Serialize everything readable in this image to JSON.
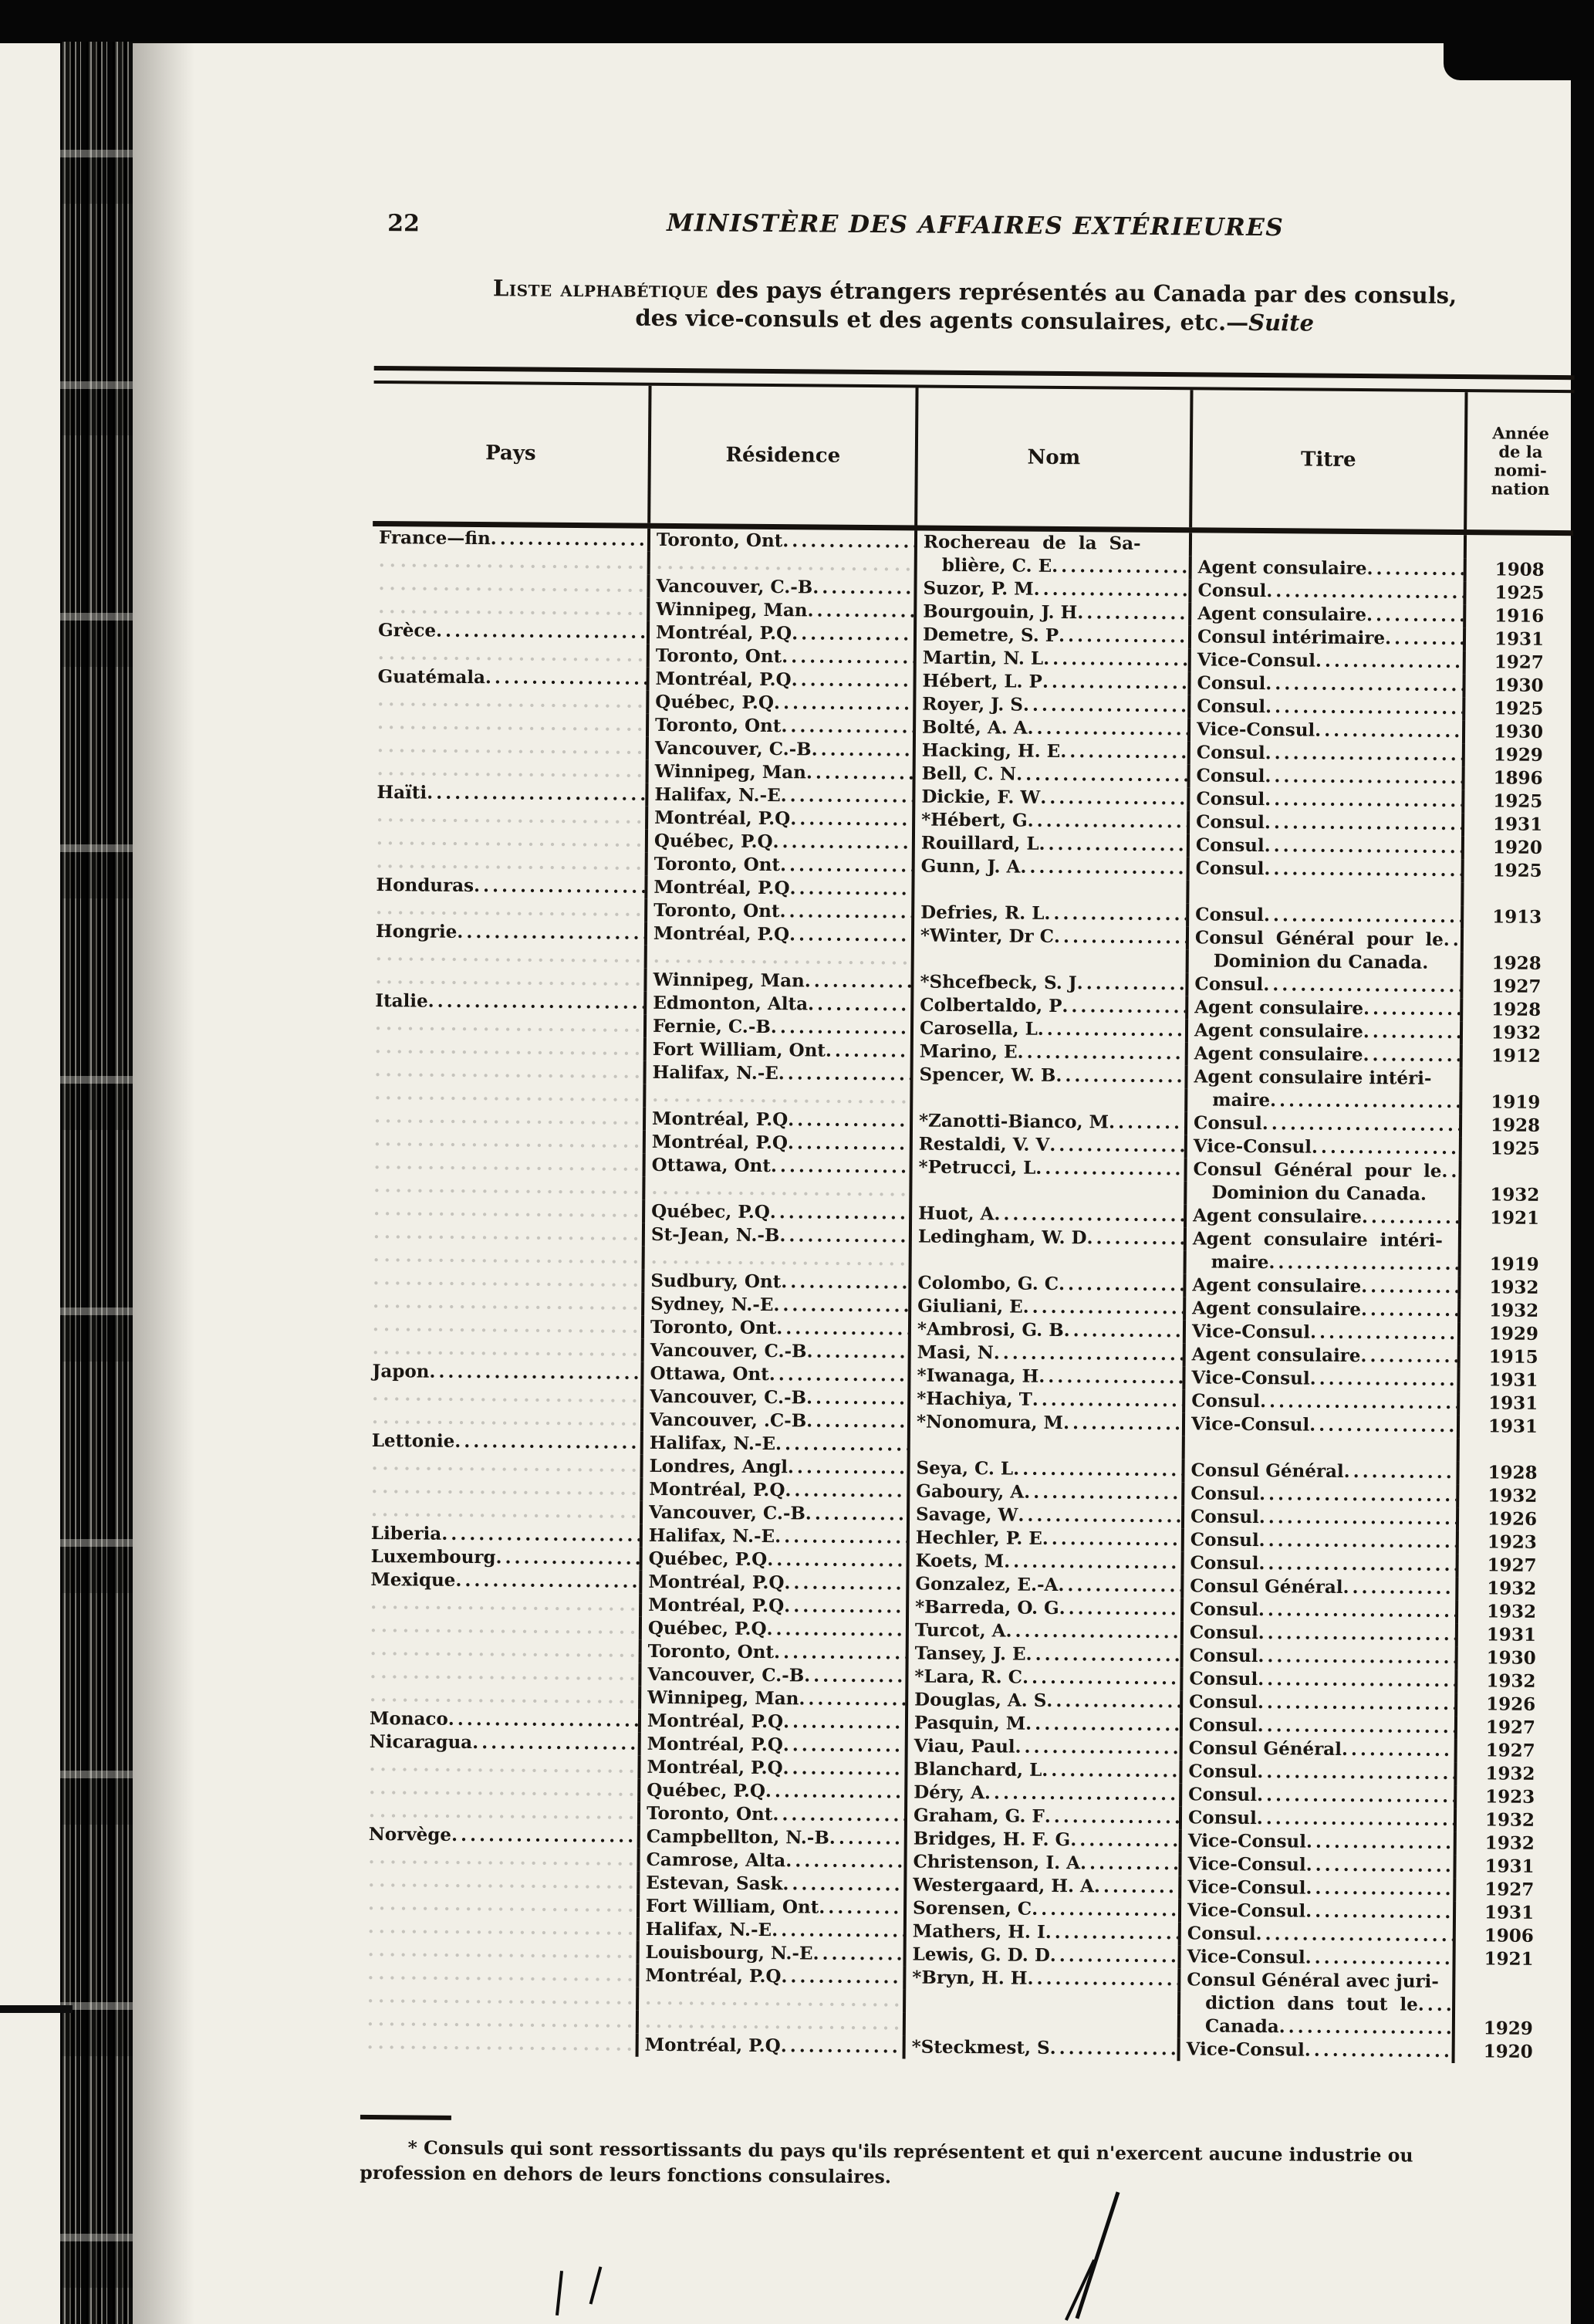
{
  "colors": {
    "ink": "#1a1612",
    "paper": "#f1efe7",
    "surround": "#060606"
  },
  "page": {
    "number": "22",
    "title": "MINISTÈRE DES AFFAIRES EXTÉRIEURES",
    "subtitle": {
      "lead": "Liste alphabétique",
      "rest": " des pays étrangers représentés au Canada par des consuls,",
      "line2": "des vice-consuls et des agents consulaires, etc.—",
      "suite": "Suite"
    }
  },
  "table": {
    "headers": {
      "pays": "Pays",
      "residence": "Résidence",
      "nom": "Nom",
      "titre": "Titre",
      "annee": "Année\nde la\nnomi-\nnation"
    },
    "rows": [
      {
        "p": "France—fin",
        "r": "Toronto, Ont",
        "n": "Rochereau  de  la  Sa-",
        "t": "",
        "a": ""
      },
      {
        "p": "",
        "r": "",
        "n": "   blière, C. E",
        "t": "Agent consulaire",
        "a": "1908"
      },
      {
        "p": "",
        "r": "Vancouver, C.-B",
        "n": "Suzor, P. M",
        "t": "Consul",
        "a": "1925"
      },
      {
        "p": "",
        "r": "Winnipeg, Man",
        "n": "Bourgouin, J. H",
        "t": "Agent consulaire",
        "a": "1916"
      },
      {
        "p": "Grèce",
        "r": "Montréal, P.Q",
        "n": "Demetre, S. P",
        "t": "Consul intérimaire",
        "a": "1931"
      },
      {
        "p": "",
        "r": "Toronto, Ont",
        "n": "Martin, N. L",
        "t": "Vice-Consul",
        "a": "1927"
      },
      {
        "p": "Guatémala",
        "r": "Montréal, P.Q",
        "n": "Hébert, L. P",
        "t": "Consul",
        "a": "1930"
      },
      {
        "p": "",
        "r": "Québec, P.Q",
        "n": "Royer, J. S",
        "t": "Consul",
        "a": "1925"
      },
      {
        "p": "",
        "r": "Toronto, Ont",
        "n": "Bolté, A. A",
        "t": "Vice-Consul",
        "a": "1930"
      },
      {
        "p": "",
        "r": "Vancouver, C.-B",
        "n": "Hacking, H. E",
        "t": "Consul",
        "a": "1929"
      },
      {
        "p": "",
        "r": "Winnipeg, Man",
        "n": "Bell, C. N",
        "t": "Consul",
        "a": "1896"
      },
      {
        "p": "Haïti",
        "r": "Halifax, N.-E",
        "n": "Dickie, F. W",
        "t": "Consul",
        "a": "1925"
      },
      {
        "p": "",
        "r": "Montréal, P.Q",
        "n": "*Hébert, G",
        "t": "Consul",
        "a": "1931"
      },
      {
        "p": "",
        "r": "Québec, P.Q",
        "n": "Rouillard, L",
        "t": "Consul",
        "a": "1920"
      },
      {
        "p": "",
        "r": "Toronto, Ont",
        "n": "Gunn, J. A",
        "t": "Consul",
        "a": "1925"
      },
      {
        "p": "Honduras",
        "r": "Montréal, P.Q",
        "n": "",
        "t": "",
        "a": ""
      },
      {
        "p": "",
        "r": "Toronto, Ont",
        "n": "Defries, R. L",
        "t": "Consul",
        "a": "1913"
      },
      {
        "p": "Hongrie",
        "r": "Montréal, P.Q",
        "n": "*Winter, Dr C",
        "t": "Consul  Général  pour  le",
        "a": ""
      },
      {
        "p": "",
        "r": "",
        "n": "",
        "t": "   Dominion du Canada.",
        "a": "1928"
      },
      {
        "p": "",
        "r": "Winnipeg, Man",
        "n": "*Shcefbeck, S. J",
        "t": "Consul",
        "a": "1927"
      },
      {
        "p": "Italie",
        "r": "Edmonton, Alta",
        "n": "Colbertaldo, P",
        "t": "Agent consulaire",
        "a": "1928"
      },
      {
        "p": "",
        "r": "Fernie, C.-B",
        "n": "Carosella, L",
        "t": "Agent consulaire",
        "a": "1932"
      },
      {
        "p": "",
        "r": "Fort William, Ont",
        "n": "Marino, E",
        "t": "Agent consulaire",
        "a": "1912"
      },
      {
        "p": "",
        "r": "Halifax, N.-E",
        "n": "Spencer, W. B",
        "t": "Agent consulaire intéri-",
        "a": ""
      },
      {
        "p": "",
        "r": "",
        "n": "",
        "t": "   maire",
        "a": "1919"
      },
      {
        "p": "",
        "r": "Montréal, P.Q",
        "n": "*Zanotti-Bianco, M",
        "t": "Consul",
        "a": "1928"
      },
      {
        "p": "",
        "r": "Montréal, P.Q",
        "n": "Restaldi, V. V",
        "t": "Vice-Consul",
        "a": "1925"
      },
      {
        "p": "",
        "r": "Ottawa, Ont",
        "n": "*Petrucci, L",
        "t": "Consul  Général  pour  le",
        "a": ""
      },
      {
        "p": "",
        "r": "",
        "n": "",
        "t": "   Dominion du Canada.",
        "a": "1932"
      },
      {
        "p": "",
        "r": "Québec, P.Q",
        "n": "Huot, A",
        "t": "Agent consulaire",
        "a": "1921"
      },
      {
        "p": "",
        "r": "St-Jean, N.-B",
        "n": "Ledingham, W. D",
        "t": "Agent  consulaire  intéri-",
        "a": ""
      },
      {
        "p": "",
        "r": "",
        "n": "",
        "t": "   maire",
        "a": "1919"
      },
      {
        "p": "",
        "r": "Sudbury, Ont",
        "n": "Colombo, G. C",
        "t": "Agent consulaire",
        "a": "1932"
      },
      {
        "p": "",
        "r": "Sydney, N.-E",
        "n": "Giuliani, E",
        "t": "Agent consulaire",
        "a": "1932"
      },
      {
        "p": "",
        "r": "Toronto, Ont",
        "n": "*Ambrosi, G. B",
        "t": "Vice-Consul",
        "a": "1929"
      },
      {
        "p": "",
        "r": "Vancouver, C.-B",
        "n": "Masi, N",
        "t": "Agent consulaire",
        "a": "1915"
      },
      {
        "p": "Japon",
        "r": "Ottawa, Ont",
        "n": "*Iwanaga, H",
        "t": "Vice-Consul",
        "a": "1931"
      },
      {
        "p": "",
        "r": "Vancouver, C.-B",
        "n": "*Hachiya, T",
        "t": "Consul",
        "a": "1931"
      },
      {
        "p": "",
        "r": "Vancouver, .C-B",
        "n": "*Nonomura, M",
        "t": "Vice-Consul",
        "a": "1931"
      },
      {
        "p": "Lettonie",
        "r": "Halifax, N.-E",
        "n": "",
        "t": "",
        "a": ""
      },
      {
        "p": "",
        "r": "Londres, Angl",
        "n": "Seya, C. L",
        "t": "Consul Général",
        "a": "1928"
      },
      {
        "p": "",
        "r": "Montréal, P.Q",
        "n": "Gaboury, A",
        "t": "Consul",
        "a": "1932"
      },
      {
        "p": "",
        "r": "Vancouver, C.-B",
        "n": "Savage, W",
        "t": "Consul",
        "a": "1926"
      },
      {
        "p": "Liberia",
        "r": "Halifax, N.-E",
        "n": "Hechler, P. E",
        "t": "Consul",
        "a": "1923"
      },
      {
        "p": "Luxembourg",
        "r": "Québec, P.Q",
        "n": "Koets, M",
        "t": "Consul",
        "a": "1927"
      },
      {
        "p": "Mexique",
        "r": "Montréal, P.Q",
        "n": "Gonzalez, E.-A",
        "t": "Consul Général",
        "a": "1932"
      },
      {
        "p": "",
        "r": "Montréal, P.Q",
        "n": "*Barreda, O. G",
        "t": "Consul",
        "a": "1932"
      },
      {
        "p": "",
        "r": "Québec, P.Q",
        "n": "Turcot, A",
        "t": "Consul",
        "a": "1931"
      },
      {
        "p": "",
        "r": "Toronto, Ont",
        "n": "Tansey, J. E",
        "t": "Consul",
        "a": "1930"
      },
      {
        "p": "",
        "r": "Vancouver, C.-B",
        "n": "*Lara, R. C",
        "t": "Consul",
        "a": "1932"
      },
      {
        "p": "",
        "r": "Winnipeg, Man",
        "n": "Douglas, A. S",
        "t": "Consul",
        "a": "1926"
      },
      {
        "p": "Monaco",
        "r": "Montréal, P.Q",
        "n": "Pasquin, M",
        "t": "Consul",
        "a": "1927"
      },
      {
        "p": "Nicaragua",
        "r": "Montréal, P.Q",
        "n": "Viau, Paul",
        "t": "Consul Général",
        "a": "1927"
      },
      {
        "p": "",
        "r": "Montréal, P.Q",
        "n": "Blanchard, L",
        "t": "Consul",
        "a": "1932"
      },
      {
        "p": "",
        "r": "Québec, P.Q",
        "n": "Déry, A",
        "t": "Consul",
        "a": "1923"
      },
      {
        "p": "",
        "r": "Toronto, Ont",
        "n": "Graham, G. F",
        "t": "Consul",
        "a": "1932"
      },
      {
        "p": "Norvège",
        "r": "Campbellton, N.-B",
        "n": "Bridges, H. F. G",
        "t": "Vice-Consul",
        "a": "1932"
      },
      {
        "p": "",
        "r": "Camrose, Alta",
        "n": "Christenson, I. A",
        "t": "Vice-Consul",
        "a": "1931"
      },
      {
        "p": "",
        "r": "Estevan, Sask",
        "n": "Westergaard, H. A",
        "t": "Vice-Consul",
        "a": "1927"
      },
      {
        "p": "",
        "r": "Fort William, Ont",
        "n": "Sorensen, C",
        "t": "Vice-Consul",
        "a": "1931"
      },
      {
        "p": "",
        "r": "Halifax, N.-E",
        "n": "Mathers, H. I",
        "t": "Consul",
        "a": "1906"
      },
      {
        "p": "",
        "r": "Louisbourg, N.-E",
        "n": "Lewis, G. D. D",
        "t": "Vice-Consul",
        "a": "1921"
      },
      {
        "p": "",
        "r": "Montréal, P.Q",
        "n": "*Bryn, H. H",
        "t": "Consul Général avec juri-",
        "a": ""
      },
      {
        "p": "",
        "r": "",
        "n": "",
        "t": "   diction  dans  tout  le",
        "a": ""
      },
      {
        "p": "",
        "r": "",
        "n": "",
        "t": "   Canada",
        "a": "1929"
      },
      {
        "p": "",
        "r": "Montréal, P.Q",
        "n": "*Steckmest, S",
        "t": "Vice-Consul",
        "a": "1920"
      }
    ]
  },
  "footnote": {
    "line1": "* Consuls qui sont ressortissants du pays qu'ils représentent et qui n'exercent aucune industrie ou",
    "line2": "profession en dehors de leurs fonctions consulaires."
  }
}
